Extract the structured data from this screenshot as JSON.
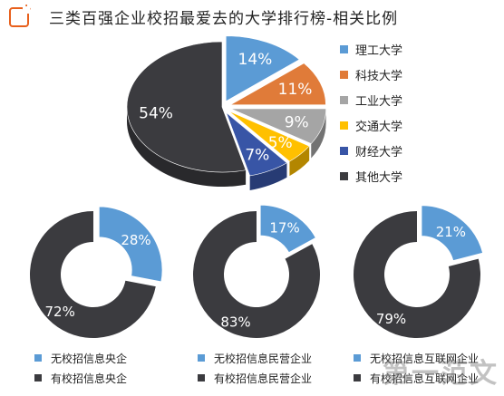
{
  "title": "三类百强企业校招最爱去的大学排行榜-相关比例",
  "watermark": "第一范文",
  "colors": {
    "blue": "#5b9bd5",
    "orange": "#e07b39",
    "gray": "#a5a5a5",
    "yellow": "#ffc000",
    "navy": "#3855a6",
    "dark": "#3b3b3f"
  },
  "chart_data": [
    {
      "type": "pie",
      "title": "三类百强企业校招最爱去的大学排行榜-相关比例",
      "categories": [
        "理工大学",
        "科技大学",
        "工业大学",
        "交通大学",
        "财经大学",
        "其他大学"
      ],
      "values": [
        14,
        11,
        9,
        5,
        7,
        54
      ],
      "labels": [
        "14%",
        "11%",
        "9%",
        "5%",
        "7%",
        "54%"
      ],
      "legend": "right",
      "style": "3d-exploded"
    },
    {
      "type": "pie",
      "categories": [
        "无校招信息央企",
        "有校招信息央企"
      ],
      "values": [
        28,
        72
      ],
      "labels": [
        "28%",
        "72%"
      ],
      "legend": "bottom",
      "style": "donut"
    },
    {
      "type": "pie",
      "categories": [
        "无校招信息民营企业",
        "有校招信息民营企业"
      ],
      "values": [
        17,
        83
      ],
      "labels": [
        "17%",
        "83%"
      ],
      "legend": "bottom",
      "style": "donut"
    },
    {
      "type": "pie",
      "categories": [
        "无校招信息互联网企业",
        "有校招信息互联网企业"
      ],
      "values": [
        21,
        79
      ],
      "labels": [
        "21%",
        "79%"
      ],
      "legend": "bottom",
      "style": "donut"
    }
  ]
}
